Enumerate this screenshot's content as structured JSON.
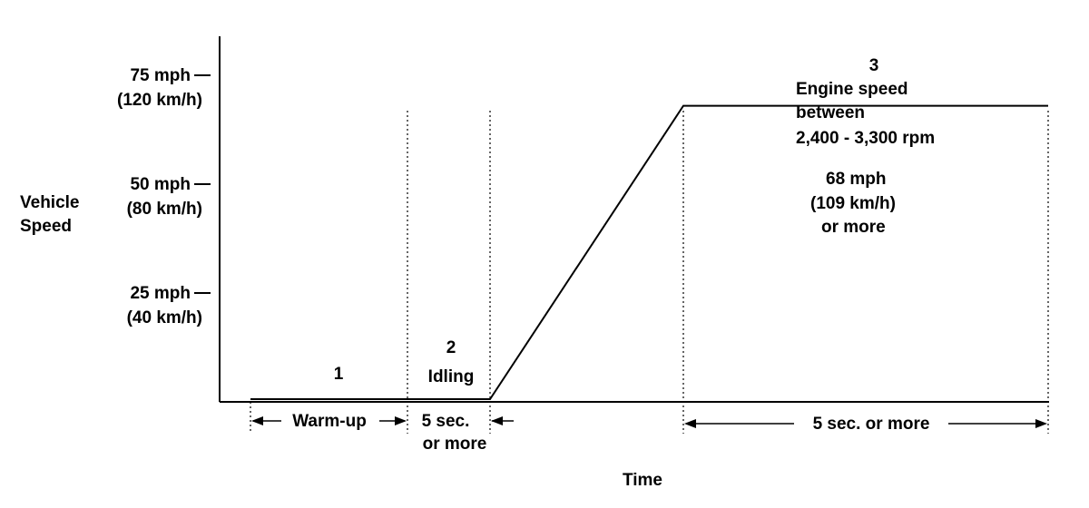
{
  "chart_data": {
    "type": "line",
    "axis_labels": {
      "ylabel": [
        "Vehicle",
        "Speed"
      ],
      "xlabel": "Time"
    },
    "y_ticks": [
      {
        "value": 75,
        "label": "75 mph",
        "sub": "(120 km/h)"
      },
      {
        "value": 50,
        "label": "50 mph",
        "sub": "(80 km/h)"
      },
      {
        "value": 25,
        "label": "25 mph",
        "sub": "(40 km/h)"
      }
    ],
    "ylim": [
      0,
      90
    ],
    "speed_profile_mph": [
      {
        "phase": "start",
        "speed": 0
      },
      {
        "phase": "end of idling",
        "speed": 0
      },
      {
        "phase": "end of acceleration",
        "speed": 68
      },
      {
        "phase": "end of hold",
        "speed": 68
      }
    ],
    "phases": [
      {
        "number": "1",
        "lines": []
      },
      {
        "number": "2",
        "lines": [
          "Idling"
        ]
      },
      {
        "number": "3",
        "lines": [
          "Engine speed",
          "between",
          "2,400 - 3,300 rpm"
        ]
      }
    ],
    "hold_speed": {
      "value": 68,
      "lines": [
        "68 mph",
        "(109 km/h)",
        "or more"
      ]
    },
    "durations": {
      "warmup": "Warm-up",
      "idle": [
        "5 sec.",
        "or more"
      ],
      "hold": "5 sec. or more"
    }
  }
}
